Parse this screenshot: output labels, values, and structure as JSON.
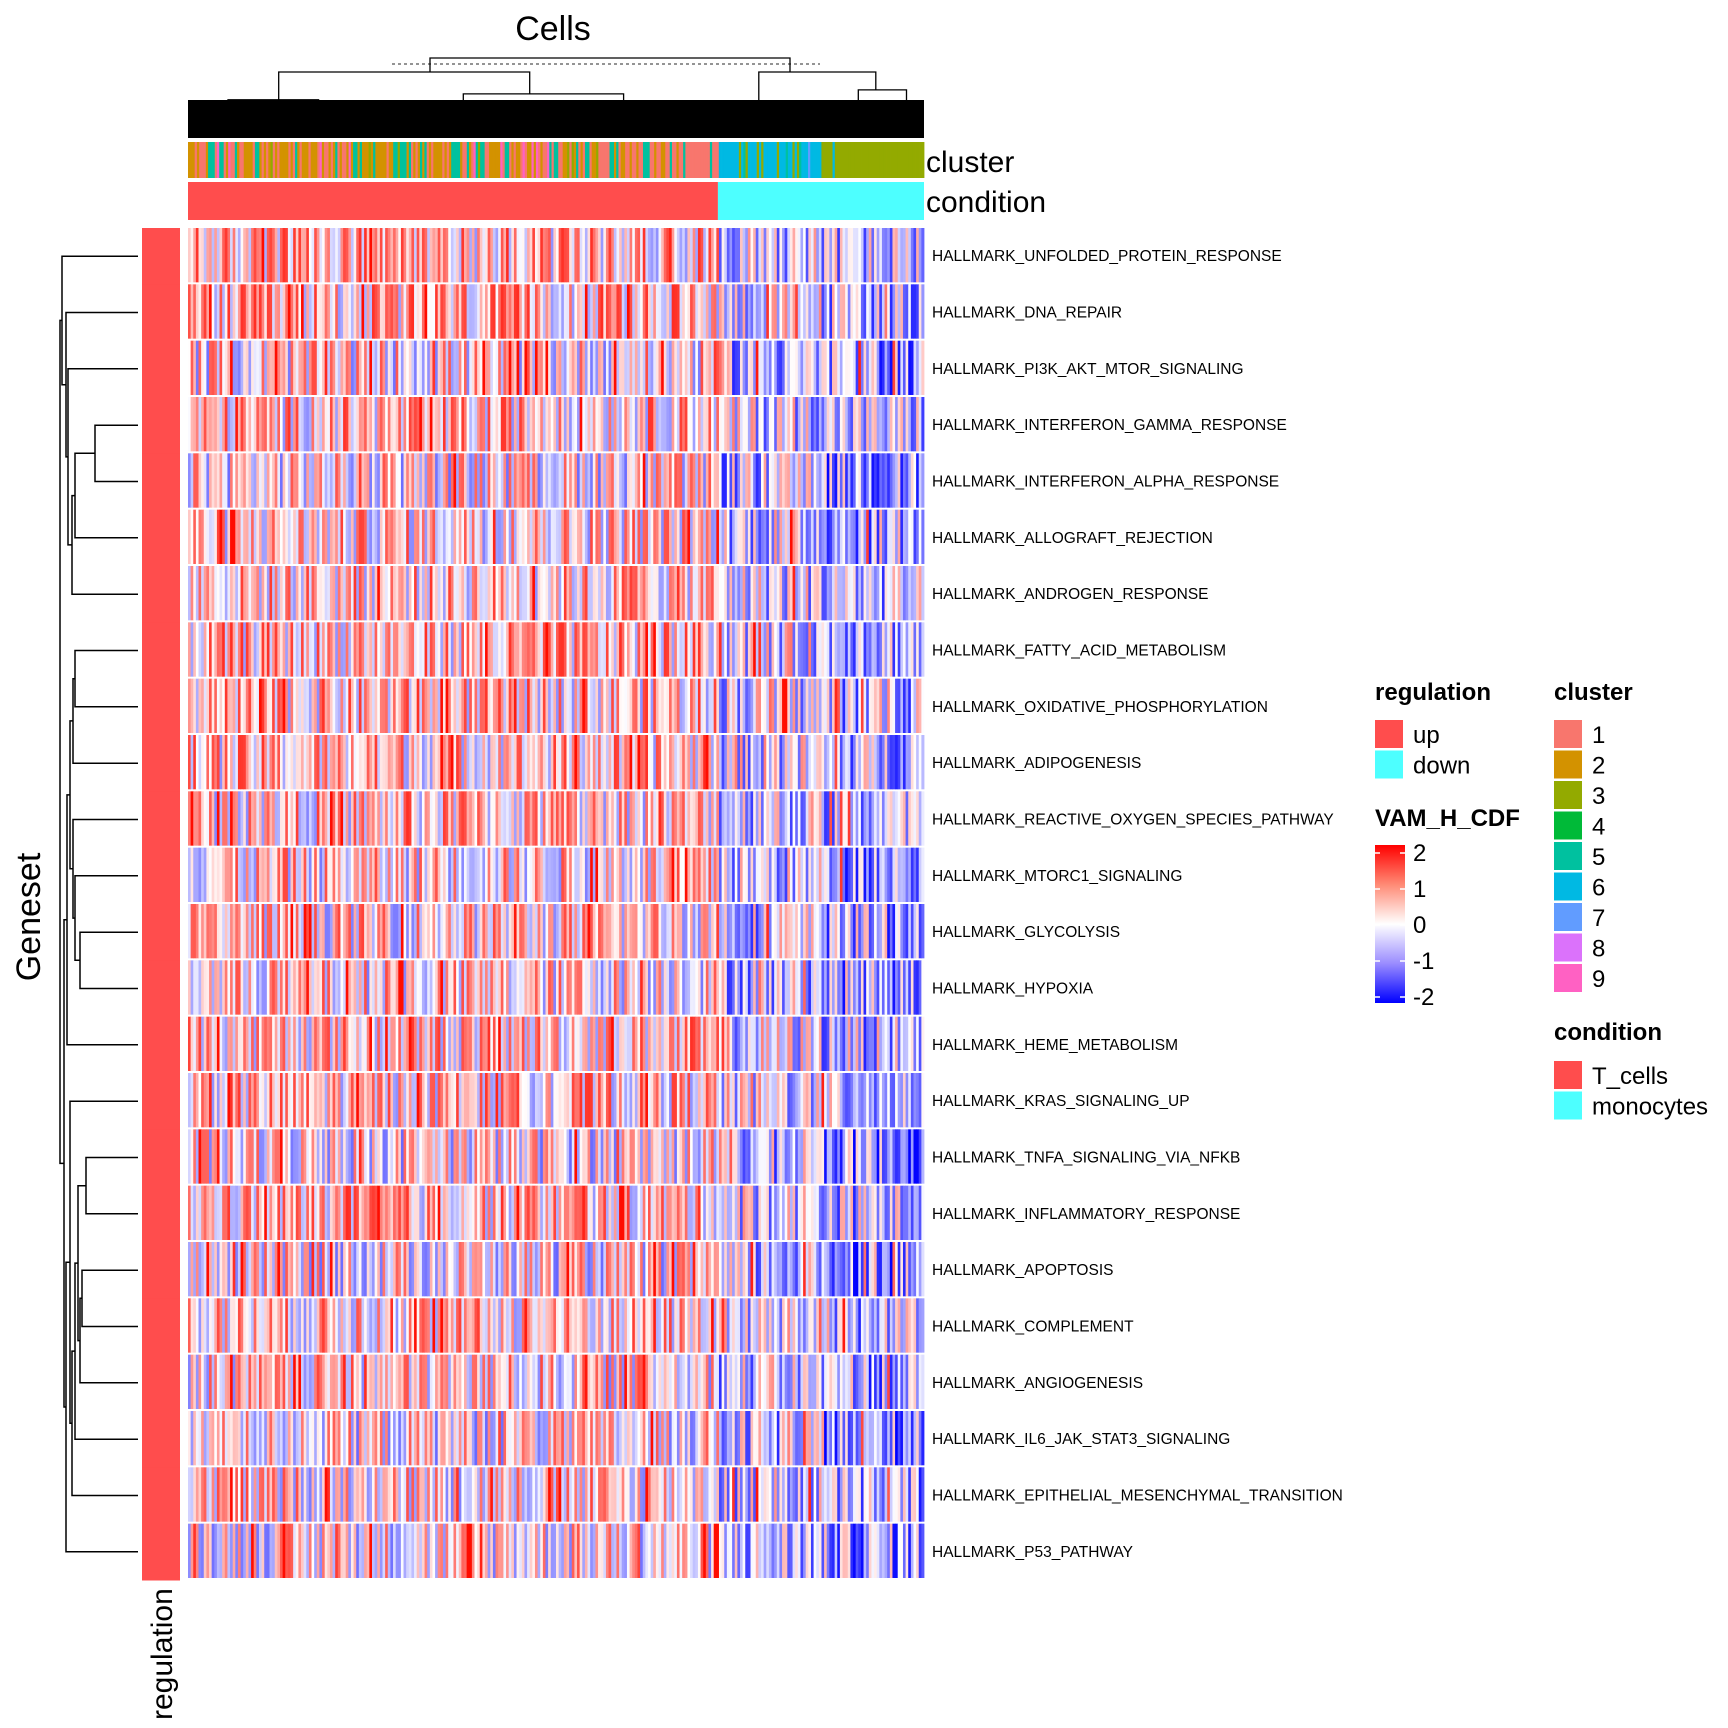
{
  "chart_data": {
    "type": "heatmap",
    "column_title": "Cells",
    "row_title": "Geneset",
    "annotation_labels": {
      "cluster": "cluster",
      "condition": "condition",
      "regulation": "regulation"
    },
    "rows": [
      "HALLMARK_UNFOLDED_PROTEIN_RESPONSE",
      "HALLMARK_DNA_REPAIR",
      "HALLMARK_PI3K_AKT_MTOR_SIGNALING",
      "HALLMARK_INTERFERON_GAMMA_RESPONSE",
      "HALLMARK_INTERFERON_ALPHA_RESPONSE",
      "HALLMARK_ALLOGRAFT_REJECTION",
      "HALLMARK_ANDROGEN_RESPONSE",
      "HALLMARK_FATTY_ACID_METABOLISM",
      "HALLMARK_OXIDATIVE_PHOSPHORYLATION",
      "HALLMARK_ADIPOGENESIS",
      "HALLMARK_REACTIVE_OXYGEN_SPECIES_PATHWAY",
      "HALLMARK_MTORC1_SIGNALING",
      "HALLMARK_GLYCOLYSIS",
      "HALLMARK_HYPOXIA",
      "HALLMARK_HEME_METABOLISM",
      "HALLMARK_KRAS_SIGNALING_UP",
      "HALLMARK_TNFA_SIGNALING_VIA_NFKB",
      "HALLMARK_INFLAMMATORY_RESPONSE",
      "HALLMARK_APOPTOSIS",
      "HALLMARK_COMPLEMENT",
      "HALLMARK_ANGIOGENESIS",
      "HALLMARK_IL6_JAK_STAT3_SIGNALING",
      "HALLMARK_EPITHELIAL_MESENCHYMAL_TRANSITION",
      "HALLMARK_P53_PATHWAY"
    ],
    "row_regulation": [
      "up",
      "up",
      "up",
      "up",
      "up",
      "up",
      "up",
      "up",
      "up",
      "up",
      "up",
      "up",
      "up",
      "up",
      "up",
      "up",
      "up",
      "up",
      "up",
      "up",
      "up",
      "up",
      "up",
      "up"
    ],
    "column_condition_split": {
      "T_cells_fraction": 0.72,
      "monocytes_fraction": 0.28
    },
    "value_scale": {
      "name": "VAM_H_CDF",
      "min": -2,
      "max": 2,
      "ticks": [
        "2",
        "1",
        "0",
        "-1",
        "-2"
      ],
      "low_color": "#0000ff",
      "mid_color": "#ffffff",
      "high_color": "#ff0000"
    },
    "legends": {
      "regulation": {
        "title": "regulation",
        "items": [
          {
            "label": "up",
            "color": "#ff4d4d"
          },
          {
            "label": "down",
            "color": "#4dffff"
          }
        ]
      },
      "cluster": {
        "title": "cluster",
        "items": [
          {
            "label": "1",
            "color": "#f8766d"
          },
          {
            "label": "2",
            "color": "#d39200"
          },
          {
            "label": "3",
            "color": "#93aa00"
          },
          {
            "label": "4",
            "color": "#00ba38"
          },
          {
            "label": "5",
            "color": "#00c19f"
          },
          {
            "label": "6",
            "color": "#00b9e3"
          },
          {
            "label": "7",
            "color": "#619cff"
          },
          {
            "label": "8",
            "color": "#db72fb"
          },
          {
            "label": "9",
            "color": "#ff61c3"
          }
        ]
      },
      "condition": {
        "title": "condition",
        "items": [
          {
            "label": "T_cells",
            "color": "#ff4d4d"
          },
          {
            "label": "monocytes",
            "color": "#4dffff"
          }
        ]
      }
    },
    "legend_placement": "right"
  }
}
